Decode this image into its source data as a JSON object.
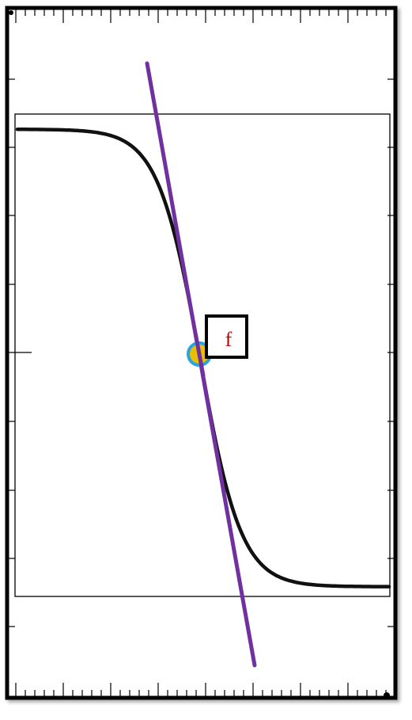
{
  "diagram": {
    "label": "f",
    "colors": {
      "curve": "#111111",
      "tangent": "#7030a0",
      "point_outline": "#2aa3e0",
      "point_fill": "#e8c000",
      "label_text": "#c00000",
      "label_box": "#000000",
      "frame": "#000000"
    }
  }
}
